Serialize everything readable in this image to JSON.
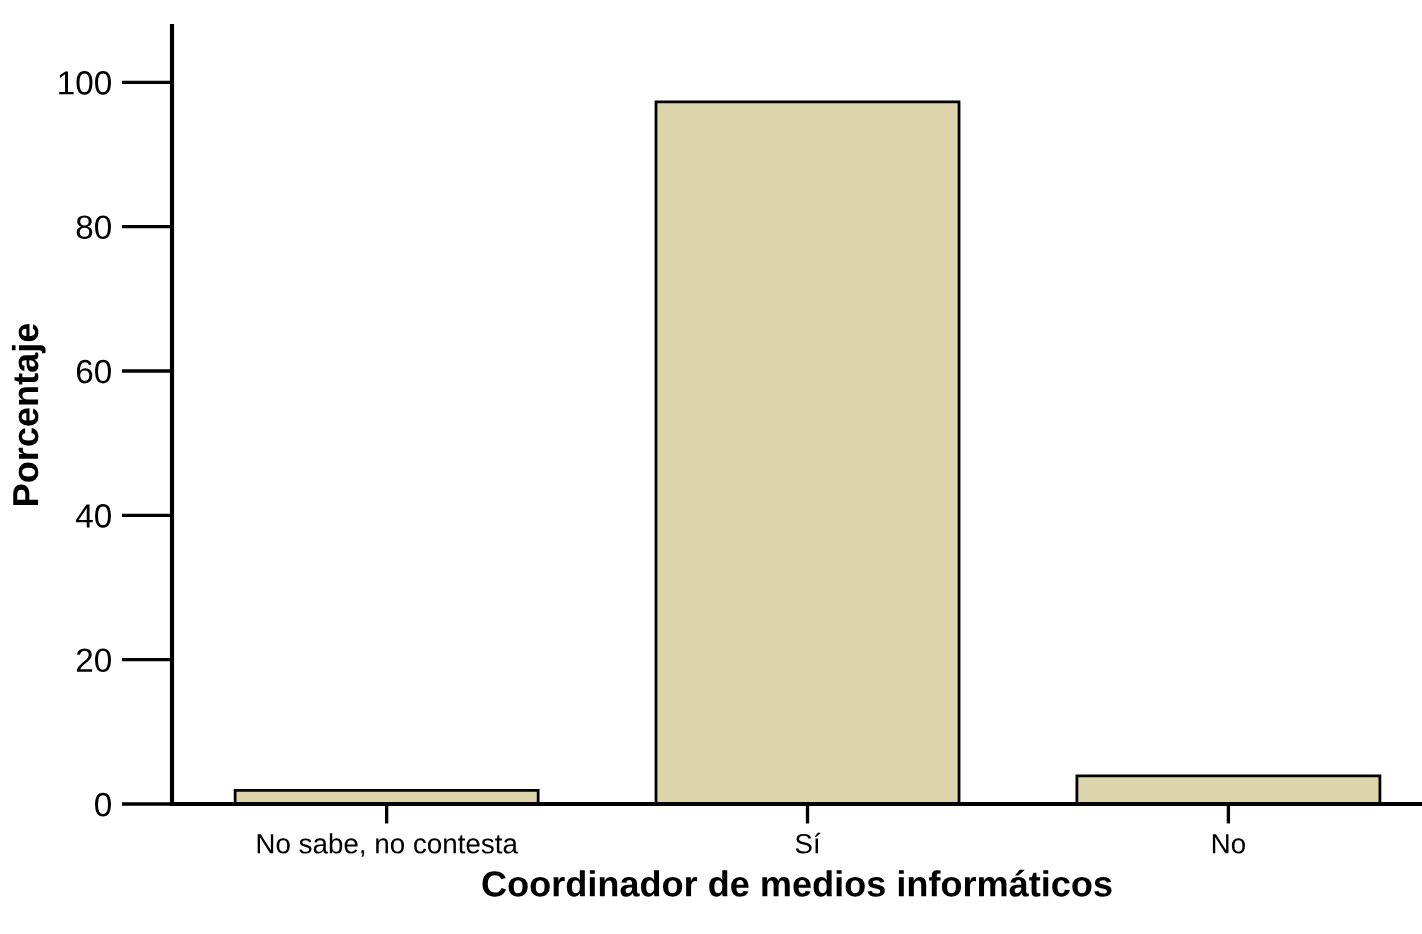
{
  "chart_data": {
    "type": "bar",
    "xlabel": "Coordinador de medios informáticos",
    "ylabel": "Porcentaje",
    "categories": [
      "No sabe, no contesta",
      "Sí",
      "No"
    ],
    "values": [
      1.9,
      97.3,
      3.9
    ],
    "color": "#dcd4aa",
    "ylim": [
      0,
      107.8
    ],
    "yticks": [
      0,
      20,
      40,
      60,
      80,
      100
    ],
    "grid": false,
    "legend": false
  }
}
